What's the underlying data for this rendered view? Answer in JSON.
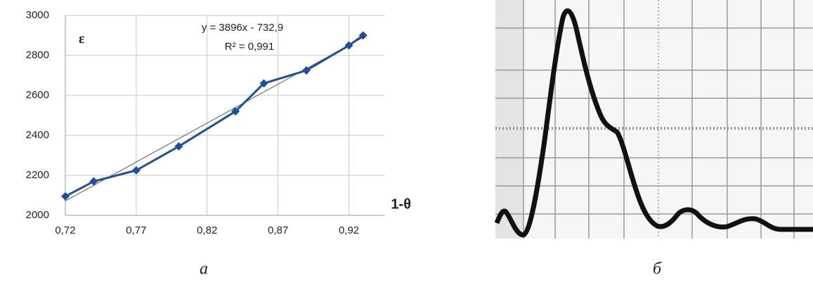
{
  "chart_data": {
    "type": "line",
    "annotations": [
      "y = 3896x - 732,9",
      "R² = 0,991"
    ],
    "x_label": "1-θ",
    "y_label": "ε",
    "x": [
      0.72,
      0.74,
      0.77,
      0.8,
      0.84,
      0.86,
      0.89,
      0.92,
      0.93
    ],
    "values": [
      2095,
      2170,
      2225,
      2345,
      2520,
      2660,
      2725,
      2850,
      2900
    ],
    "color": "#1f4e9c",
    "trendline": {
      "x": [
        0.72,
        0.93
      ],
      "values": [
        2072,
        2890
      ],
      "color": "#555555"
    },
    "xlim": [
      0.72,
      0.945
    ],
    "xticks": [
      {
        "value": 0.72,
        "label": "0,72"
      },
      {
        "value": 0.77,
        "label": "0,77"
      },
      {
        "value": 0.82,
        "label": "0,82"
      },
      {
        "value": 0.87,
        "label": "0,87"
      },
      {
        "value": 0.92,
        "label": "0,92"
      }
    ],
    "ylim": [
      2000,
      3000
    ],
    "yticks": [
      2000,
      2200,
      2400,
      2600,
      2800,
      3000
    ],
    "grid": true
  },
  "captions": [
    "а",
    "б"
  ]
}
